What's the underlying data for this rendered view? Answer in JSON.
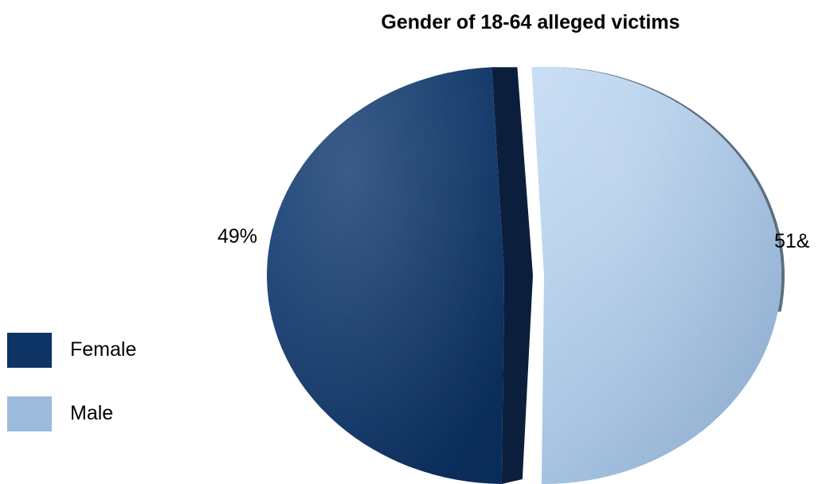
{
  "chart_data": {
    "type": "pie",
    "title": "Gender of 18-64 alleged victims",
    "categories": [
      "Female",
      "Male"
    ],
    "values": [
      49,
      51
    ],
    "data_labels": [
      "49%",
      "51&"
    ],
    "colors": [
      "#0e3466",
      "#9dbbdc"
    ],
    "exploded": true,
    "style": "3d",
    "legend_position": "bottom-left"
  }
}
